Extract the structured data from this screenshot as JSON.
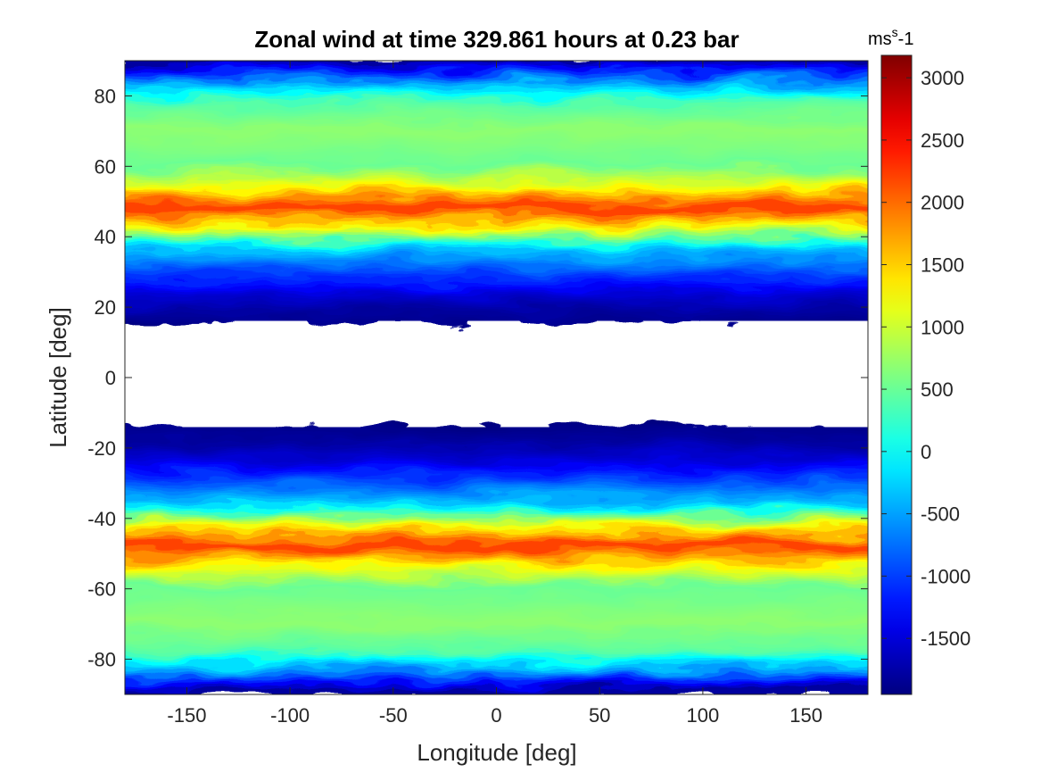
{
  "chart_data": {
    "type": "heatmap",
    "title": "Zonal wind at time 329.861 hours at 0.23 bar",
    "xlabel": "Longitude [deg]",
    "ylabel": "Latitude [deg]",
    "xlim": [
      -180,
      180
    ],
    "ylim": [
      -90,
      90
    ],
    "x_ticks": [
      -150,
      -100,
      -50,
      0,
      50,
      100,
      150
    ],
    "y_ticks": [
      -80,
      -60,
      -40,
      -20,
      0,
      20,
      40,
      60,
      80
    ],
    "colormap": "jet",
    "colorbar": {
      "label_base": "ms",
      "label_sup": "s",
      "label_tail": "-1",
      "clim": [
        -1950,
        3180
      ],
      "ticks": [
        -1500,
        -1000,
        -500,
        0,
        500,
        1000,
        1500,
        2000,
        2500,
        3000
      ]
    },
    "masked_color": "#ffffff",
    "zonal_profile": {
      "lat": [
        -90,
        -84,
        -78,
        -70,
        -60,
        -54,
        -48,
        -42,
        -36,
        -30,
        -24,
        -18,
        -14,
        -12,
        12,
        14,
        18,
        24,
        30,
        36,
        42,
        48,
        54,
        60,
        70,
        78,
        84,
        90
      ],
      "u": [
        -1900,
        -600,
        400,
        700,
        500,
        1200,
        2300,
        1100,
        -300,
        -900,
        -1500,
        -1800,
        -1900,
        -1950,
        -1950,
        -1900,
        -1800,
        -1500,
        -900,
        -300,
        1100,
        2300,
        1200,
        500,
        700,
        400,
        -600,
        -1900
      ]
    },
    "masked_band_lat": [
      -14,
      16
    ]
  }
}
